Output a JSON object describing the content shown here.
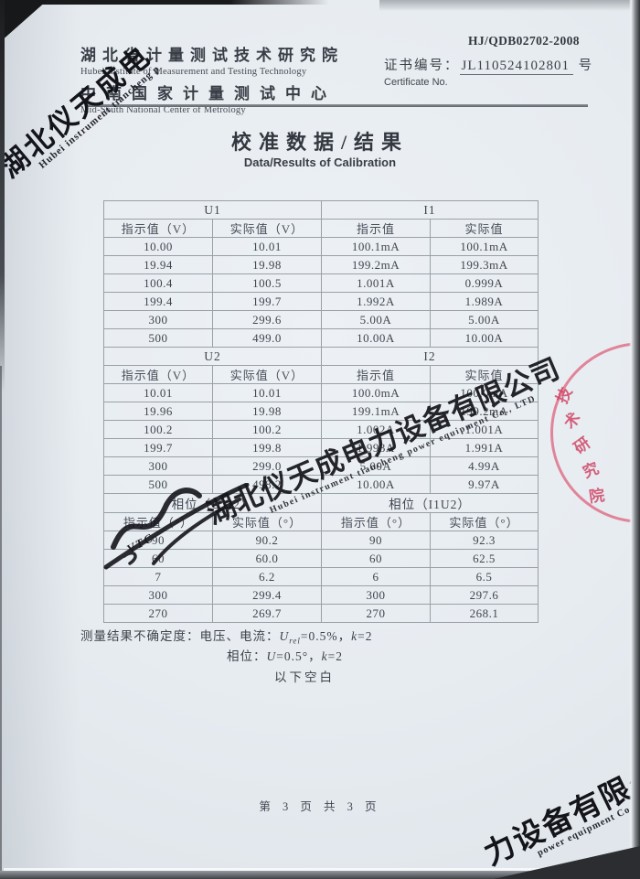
{
  "header": {
    "doc_code": "HJ/QDB02702-2008",
    "org_cn": "湖北省计量测试技术研究院",
    "org_en": "Hubei Institute of Measurement and Testing Technology",
    "center_cn": "中南国家计量测试中心",
    "center_en": "Mid-South National Center of Metrology",
    "cert_label_cn": "证书编号：",
    "cert_no": "JL110524102801",
    "cert_suffix": "号",
    "cert_label_en": "Certificate No."
  },
  "title": {
    "cn": "校准数据/结果",
    "en": "Data/Results of Calibration"
  },
  "table": {
    "sections": [
      {
        "left_header": "U1",
        "right_header": "I1",
        "col_headers": [
          "指示值（V）",
          "实际值（V）",
          "指示值",
          "实际值"
        ],
        "rows": [
          [
            "10.00",
            "10.01",
            "100.1mA",
            "100.1mA"
          ],
          [
            "19.94",
            "19.98",
            "199.2mA",
            "199.3mA"
          ],
          [
            "100.4",
            "100.5",
            "1.001A",
            "0.999A"
          ],
          [
            "199.4",
            "199.7",
            "1.992A",
            "1.989A"
          ],
          [
            "300",
            "299.6",
            "5.00A",
            "5.00A"
          ],
          [
            "500",
            "499.0",
            "10.00A",
            "10.00A"
          ]
        ]
      },
      {
        "left_header": "U2",
        "right_header": "I2",
        "col_headers": [
          "指示值（V）",
          "实际值（V）",
          "指示值",
          "实际值"
        ],
        "rows": [
          [
            "10.01",
            "10.01",
            "100.0mA",
            "100.0mA"
          ],
          [
            "19.96",
            "19.98",
            "199.1mA",
            "199.2mA"
          ],
          [
            "100.2",
            "100.2",
            "1.002A",
            "1.001A"
          ],
          [
            "199.7",
            "199.8",
            "1.993A",
            "1.991A"
          ],
          [
            "300",
            "299.0",
            "5.00A",
            "4.99A"
          ],
          [
            "500",
            "498.2",
            "10.00A",
            "9.97A"
          ]
        ]
      },
      {
        "left_header": "相位（U1I2）",
        "right_header": "相位（I1U2）",
        "col_headers": [
          "指示值（°）",
          "实际值（°）",
          "指示值（°）",
          "实际值（°）"
        ],
        "rows": [
          [
            "90",
            "90.2",
            "90",
            "92.3"
          ],
          [
            "60",
            "60.0",
            "60",
            "62.5"
          ],
          [
            "7",
            "6.2",
            "6",
            "6.5"
          ],
          [
            "300",
            "299.4",
            "300",
            "297.6"
          ],
          [
            "270",
            "269.7",
            "270",
            "268.1"
          ]
        ]
      }
    ]
  },
  "notes": {
    "line1_prefix": "测量结果不确定度：电压、电流：",
    "u_symbol": "U",
    "u_sub": "rel",
    "line1_mid": "=0.5%，",
    "k_symbol": "k",
    "k_val": "=2",
    "line2_prefix": "相位：",
    "line2_u": "U",
    "line2_mid": "=0.5°，",
    "line3": "以下空白"
  },
  "footer": {
    "page_text": "第 3 页 共 3 页"
  },
  "watermarks": {
    "top_left_cn": "湖北仪天成电",
    "top_left_en": "Hubei instrument tiancheng p",
    "center_cn": "湖北仪天成电力设备有限公司",
    "center_en": "Hubei instrument tiancheng power equipment Co., LTD",
    "bottom_right_cn": "力设备有限公司",
    "bottom_right_en": "power equipment Co., LT",
    "signature_letters": "VTC"
  },
  "stamp": {
    "arc_text": [
      "技",
      "术",
      "研",
      "究",
      "院"
    ]
  }
}
